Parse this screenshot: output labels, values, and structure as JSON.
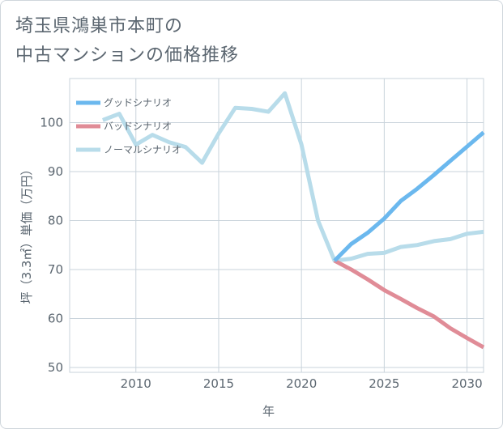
{
  "chart_data": {
    "type": "line",
    "title_lines": [
      "埼玉県鴻巣市本町の",
      "中古マンションの価格推移"
    ],
    "xlabel": "年",
    "ylabel": "坪（3.3㎡）単価（万円）",
    "xlim": [
      2006,
      2031
    ],
    "ylim": [
      49,
      109
    ],
    "xticks": [
      2010,
      2015,
      2020,
      2025,
      2030
    ],
    "yticks": [
      50,
      60,
      70,
      80,
      90,
      100
    ],
    "series": [
      {
        "name": "グッドシナリオ",
        "color": "#6bb8ee",
        "x": [
          2022,
          2023,
          2024,
          2025,
          2026,
          2027,
          2028,
          2029,
          2030,
          2031
        ],
        "values": [
          71.8,
          75.2,
          77.5,
          80.4,
          84,
          86.5,
          89.3,
          92.2,
          95.1,
          98
        ]
      },
      {
        "name": "バッドシナリオ",
        "color": "#e08c97",
        "x": [
          2022,
          2023,
          2024,
          2025,
          2026,
          2027,
          2028,
          2029,
          2030,
          2031
        ],
        "values": [
          71.8,
          70,
          68,
          65.8,
          64,
          62.1,
          60.4,
          58,
          56,
          54.1
        ]
      },
      {
        "name": "ノーマルシナリオ",
        "color": "#b8dcea",
        "x": [
          2008,
          2009,
          2010,
          2011,
          2012,
          2013,
          2014,
          2015,
          2016,
          2017,
          2018,
          2019,
          2020,
          2021,
          2022,
          2023,
          2024,
          2025,
          2026,
          2027,
          2028,
          2029,
          2030,
          2031
        ],
        "values": [
          100.5,
          101.8,
          95.5,
          97.5,
          96,
          95,
          91.8,
          97.8,
          103,
          102.8,
          102.2,
          106,
          95.5,
          80,
          71.8,
          72.2,
          73.2,
          73.4,
          74.6,
          75,
          75.8,
          76.2,
          77.3,
          77.7
        ]
      }
    ]
  }
}
